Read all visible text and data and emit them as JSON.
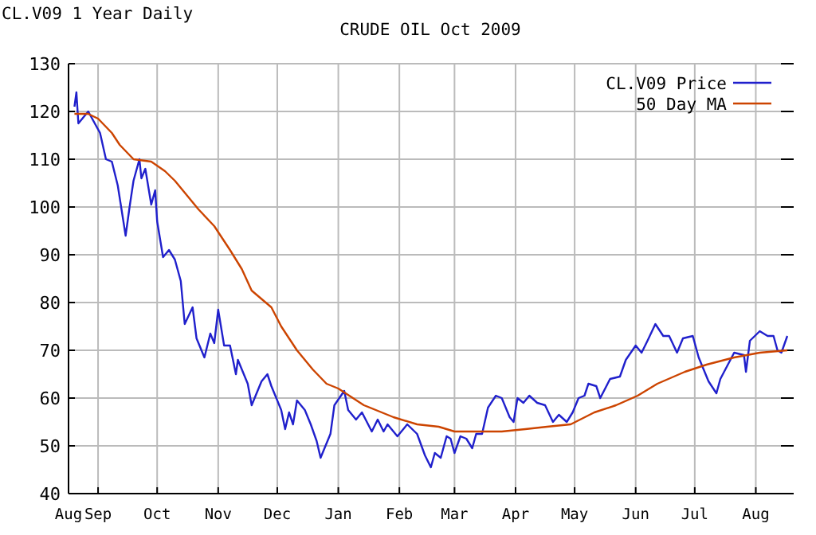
{
  "chart_data": {
    "type": "line",
    "title": "CRUDE OIL Oct 2009",
    "annotations": [
      "CL.V09 1 Year Daily"
    ],
    "xlim": [
      "2008-08-17",
      "2009-08-17"
    ],
    "xticks": [
      {
        "value": "2008-08-17",
        "label": "Aug"
      },
      {
        "value": "2008-09-01",
        "label": "Sep"
      },
      {
        "value": "2008-10-01",
        "label": "Oct"
      },
      {
        "value": "2008-11-01",
        "label": "Nov"
      },
      {
        "value": "2008-12-01",
        "label": "Dec"
      },
      {
        "value": "2009-01-01",
        "label": "Jan"
      },
      {
        "value": "2009-02-01",
        "label": "Feb"
      },
      {
        "value": "2009-03-01",
        "label": "Mar"
      },
      {
        "value": "2009-04-01",
        "label": "Apr"
      },
      {
        "value": "2009-05-01",
        "label": "May"
      },
      {
        "value": "2009-06-01",
        "label": "Jun"
      },
      {
        "value": "2009-07-01",
        "label": "Jul"
      },
      {
        "value": "2009-08-01",
        "label": "Aug"
      }
    ],
    "ylim": [
      40,
      130
    ],
    "yticks": [
      40,
      50,
      60,
      70,
      80,
      90,
      100,
      110,
      120,
      130
    ],
    "grid": true,
    "legend": "top right",
    "series": [
      {
        "name": "CL.V09 Price",
        "color": "#2020cc",
        "x": [
          "2008-08-20",
          "2008-08-21",
          "2008-08-22",
          "2008-08-27",
          "2008-09-02",
          "2008-09-05",
          "2008-09-08",
          "2008-09-11",
          "2008-09-15",
          "2008-09-17",
          "2008-09-19",
          "2008-09-22",
          "2008-09-23",
          "2008-09-25",
          "2008-09-28",
          "2008-09-30",
          "2008-10-01",
          "2008-10-04",
          "2008-10-07",
          "2008-10-10",
          "2008-10-13",
          "2008-10-15",
          "2008-10-19",
          "2008-10-21",
          "2008-10-25",
          "2008-10-28",
          "2008-10-30",
          "2008-11-01",
          "2008-11-04",
          "2008-11-07",
          "2008-11-10",
          "2008-11-11",
          "2008-11-16",
          "2008-11-18",
          "2008-11-23",
          "2008-11-26",
          "2008-11-28",
          "2008-12-03",
          "2008-12-05",
          "2008-12-07",
          "2008-12-09",
          "2008-12-11",
          "2008-12-15",
          "2008-12-18",
          "2008-12-21",
          "2008-12-23",
          "2008-12-25",
          "2008-12-28",
          "2008-12-30",
          "2009-01-04",
          "2009-01-06",
          "2009-01-10",
          "2009-01-13",
          "2009-01-18",
          "2009-01-21",
          "2009-01-24",
          "2009-01-26",
          "2009-01-31",
          "2009-02-05",
          "2009-02-10",
          "2009-02-14",
          "2009-02-17",
          "2009-02-19",
          "2009-02-22",
          "2009-02-25",
          "2009-02-27",
          "2009-03-01",
          "2009-03-04",
          "2009-03-07",
          "2009-03-10",
          "2009-03-12",
          "2009-03-15",
          "2009-03-18",
          "2009-03-22",
          "2009-03-25",
          "2009-03-29",
          "2009-03-31",
          "2009-04-02",
          "2009-04-05",
          "2009-04-08",
          "2009-04-12",
          "2009-04-16",
          "2009-04-20",
          "2009-04-23",
          "2009-04-27",
          "2009-04-30",
          "2009-05-03",
          "2009-05-06",
          "2009-05-08",
          "2009-05-12",
          "2009-05-14",
          "2009-05-19",
          "2009-05-24",
          "2009-05-27",
          "2009-06-01",
          "2009-06-04",
          "2009-06-07",
          "2009-06-11",
          "2009-06-15",
          "2009-06-18",
          "2009-06-22",
          "2009-06-25",
          "2009-06-30",
          "2009-07-03",
          "2009-07-08",
          "2009-07-12",
          "2009-07-14",
          "2009-07-21",
          "2009-07-26",
          "2009-07-27",
          "2009-07-29",
          "2009-08-03",
          "2009-08-07",
          "2009-08-10",
          "2009-08-12",
          "2009-08-14",
          "2009-08-17"
        ],
        "values": [
          121,
          124,
          117.5,
          120,
          115.5,
          110,
          109.5,
          104.5,
          94,
          100,
          105.5,
          110,
          106,
          108,
          100.5,
          103.5,
          97,
          89.5,
          91,
          89,
          84.5,
          75.5,
          79,
          72.5,
          68.5,
          73.5,
          71.5,
          78.5,
          71,
          71,
          65,
          68,
          63,
          58.5,
          63.5,
          65,
          62.5,
          57.5,
          53.5,
          57,
          54.5,
          59.5,
          57.5,
          54.5,
          51,
          47.5,
          49.5,
          52.5,
          58.5,
          61.5,
          57.5,
          55.5,
          57,
          53,
          55.5,
          53,
          54.5,
          52,
          54.5,
          52.5,
          48,
          45.5,
          48.5,
          47.5,
          52,
          51.5,
          48.5,
          52,
          51.5,
          49.5,
          52.5,
          52.5,
          58,
          60.5,
          60,
          56,
          55,
          60,
          59,
          60.5,
          59,
          58.5,
          55,
          56.5,
          55,
          57,
          60,
          60.5,
          63,
          62.5,
          60,
          64,
          64.5,
          68,
          71,
          69.5,
          72,
          75.5,
          73,
          73,
          69.5,
          72.5,
          73,
          68.5,
          63.5,
          61,
          64,
          69.5,
          69,
          65.5,
          72,
          74,
          73,
          73,
          70,
          69.5,
          73
        ]
      },
      {
        "name": "50 Day MA",
        "color": "#cc4400",
        "x": [
          "2008-08-20",
          "2008-08-27",
          "2008-09-01",
          "2008-09-08",
          "2008-09-12",
          "2008-09-19",
          "2008-09-28",
          "2008-10-05",
          "2008-10-10",
          "2008-10-16",
          "2008-10-22",
          "2008-10-30",
          "2008-11-07",
          "2008-11-13",
          "2008-11-18",
          "2008-11-28",
          "2008-12-03",
          "2008-12-11",
          "2008-12-19",
          "2008-12-26",
          "2009-01-01",
          "2009-01-14",
          "2009-01-29",
          "2009-02-10",
          "2009-02-21",
          "2009-03-01",
          "2009-03-15",
          "2009-03-25",
          "2009-04-06",
          "2009-04-17",
          "2009-04-29",
          "2009-05-11",
          "2009-05-22",
          "2009-06-02",
          "2009-06-12",
          "2009-06-26",
          "2009-07-07",
          "2009-07-21",
          "2009-08-03",
          "2009-08-17"
        ],
        "values": [
          119.5,
          119.5,
          118.5,
          115.5,
          113,
          110,
          109.5,
          107.5,
          105.5,
          102.5,
          99.5,
          96,
          91,
          87,
          82.5,
          79,
          75,
          70,
          66,
          63,
          62,
          58.5,
          56,
          54.5,
          54,
          53,
          53,
          53,
          53.5,
          54,
          54.5,
          57,
          58.5,
          60.5,
          63,
          65.5,
          67,
          68.5,
          69.5,
          70
        ]
      }
    ]
  }
}
